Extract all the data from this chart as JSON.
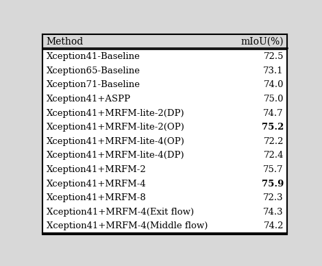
{
  "title_col1": "Method",
  "title_col2": "mIoU(%)",
  "rows": [
    {
      "method": "Xception41-Baseline",
      "miou": "72.5",
      "bold_miou": false
    },
    {
      "method": "Xception65-Baseline",
      "miou": "73.1",
      "bold_miou": false
    },
    {
      "method": "Xception71-Baseline",
      "miou": "74.0",
      "bold_miou": false
    },
    {
      "method": "Xception41+ASPP",
      "miou": "75.0",
      "bold_miou": false
    },
    {
      "method": "Xception41+MRFM-lite-2(DP)",
      "miou": "74.7",
      "bold_miou": false
    },
    {
      "method": "Xception41+MRFM-lite-2(OP)",
      "miou": "75.2",
      "bold_miou": true
    },
    {
      "method": "Xception41+MRFM-lite-4(OP)",
      "miou": "72.2",
      "bold_miou": false
    },
    {
      "method": "Xception41+MRFM-lite-4(DP)",
      "miou": "72.4",
      "bold_miou": false
    },
    {
      "method": "Xception41+MRFM-2",
      "miou": "75.7",
      "bold_miou": false
    },
    {
      "method": "Xception41+MRFM-4",
      "miou": "75.9",
      "bold_miou": true
    },
    {
      "method": "Xception41+MRFM-8",
      "miou": "72.3",
      "bold_miou": false
    },
    {
      "method": "Xception41+MRFM-4(Exit flow)",
      "miou": "74.3",
      "bold_miou": false
    },
    {
      "method": "Xception41+MRFM-4(Middle flow)",
      "miou": "74.2",
      "bold_miou": false
    }
  ],
  "bg_color": "#d8d8d8",
  "row_bg": "#ffffff",
  "border_color": "#000000",
  "text_color": "#000000",
  "font_size": 9.5,
  "header_font_size": 10.0
}
